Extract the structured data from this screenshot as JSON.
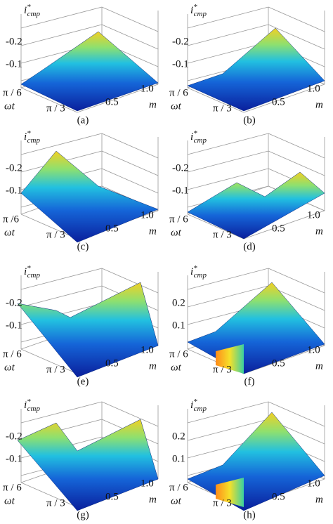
{
  "panels": [
    {
      "zlabel": {
        "symbol": "i",
        "sup": "*",
        "sub": "cmp"
      },
      "zticks": [
        "-0.2",
        "-0.1"
      ],
      "xticks": [
        "π / 6",
        "π / 3"
      ],
      "xlabel": "ωt",
      "yticks": [
        "0.5",
        "1.0"
      ],
      "ylabel": "m",
      "caption": "(a)"
    },
    {
      "zlabel": {
        "symbol": "i",
        "sup": "*",
        "sub": "cmp"
      },
      "zticks": [
        "-0.2",
        "-0.1"
      ],
      "xticks": [
        "π / 6",
        "π / 3"
      ],
      "xlabel": "ωt",
      "yticks": [
        "0.5",
        "1.0"
      ],
      "ylabel": "m",
      "caption": "(b)"
    },
    {
      "zlabel": {
        "symbol": "i",
        "sup": "*",
        "sub": "cmp"
      },
      "zticks": [
        "-0.2",
        "-0.1"
      ],
      "xticks": [
        "π /6",
        "π / 3"
      ],
      "xlabel": "ωt",
      "yticks": [
        "0.5",
        "1.0"
      ],
      "ylabel": "m",
      "caption": "(c)"
    },
    {
      "zlabel": {
        "symbol": "i",
        "sup": "*",
        "sub": "cmp"
      },
      "zticks": [
        "-0.2",
        "-0.1"
      ],
      "xticks": [
        "π / 6",
        "π / 3"
      ],
      "xlabel": "ωt",
      "yticks": [
        "0.5",
        "1.0"
      ],
      "ylabel": "m",
      "caption": "(d)"
    },
    {
      "zlabel": {
        "symbol": "i",
        "sup": "*",
        "sub": "cmp"
      },
      "zticks": [
        "-0.2",
        "-0.1"
      ],
      "xticks": [
        "π / 6",
        "π / 3"
      ],
      "xlabel": "ωt",
      "yticks": [
        "0.5",
        "1.0"
      ],
      "ylabel": "m",
      "caption": "(e)"
    },
    {
      "zlabel": {
        "symbol": "i",
        "sup": "*",
        "sub": "cmp"
      },
      "zticks": [
        "0.2",
        "0.1"
      ],
      "xticks": [
        "π / 6",
        "π / 3"
      ],
      "xlabel": "ωt",
      "yticks": [
        "0.5",
        "1.0"
      ],
      "ylabel": "m",
      "caption": "(f)"
    },
    {
      "zlabel": {
        "symbol": "i",
        "sup": "*",
        "sub": "cmp"
      },
      "zticks": [
        "-0.2",
        "-0.1"
      ],
      "xticks": [
        "π / 6",
        "π / 3"
      ],
      "xlabel": "ωt",
      "yticks": [
        "0.5",
        "1.0"
      ],
      "ylabel": "m",
      "caption": "(g)"
    },
    {
      "zlabel": {
        "symbol": "i",
        "sup": "*",
        "sub": "cmp"
      },
      "zticks": [
        "0.2",
        "0.1"
      ],
      "xticks": [
        "π / 6",
        "π / 3"
      ],
      "xlabel": "ωt",
      "yticks": [
        "0.5",
        "1.0"
      ],
      "ylabel": "m",
      "caption": "(h)"
    }
  ]
}
